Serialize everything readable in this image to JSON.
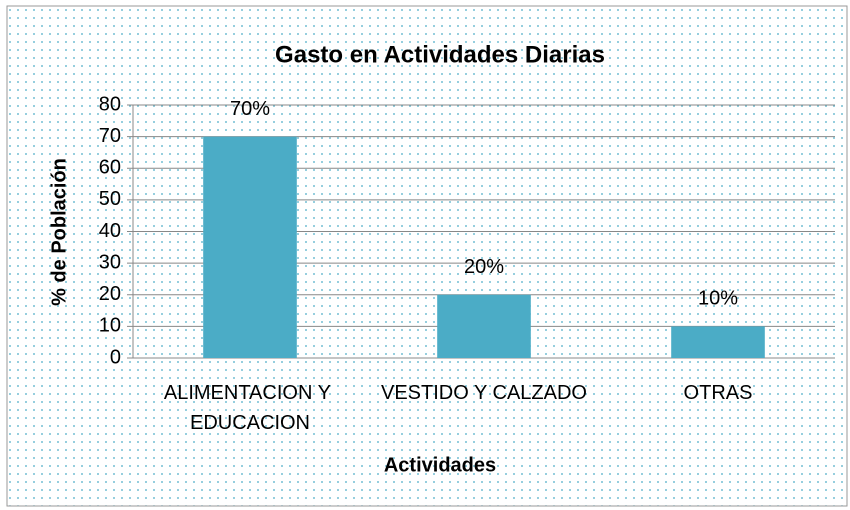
{
  "chart_data": {
    "type": "bar",
    "title": "Gasto en Actividades Diarias",
    "x_label": "Actividades",
    "y_label": "% de Población",
    "categories": [
      "ALIMENTACION Y EDUCACION",
      "VESTIDO Y CALZADO",
      "OTRAS"
    ],
    "values": [
      70,
      20,
      10
    ],
    "value_labels": [
      "70%",
      "20%",
      "10%"
    ],
    "color": "#4bacc6",
    "ylim": [
      0,
      80
    ],
    "yticks": [
      0,
      10,
      20,
      30,
      40,
      50,
      60,
      70,
      80
    ],
    "grid": true
  }
}
